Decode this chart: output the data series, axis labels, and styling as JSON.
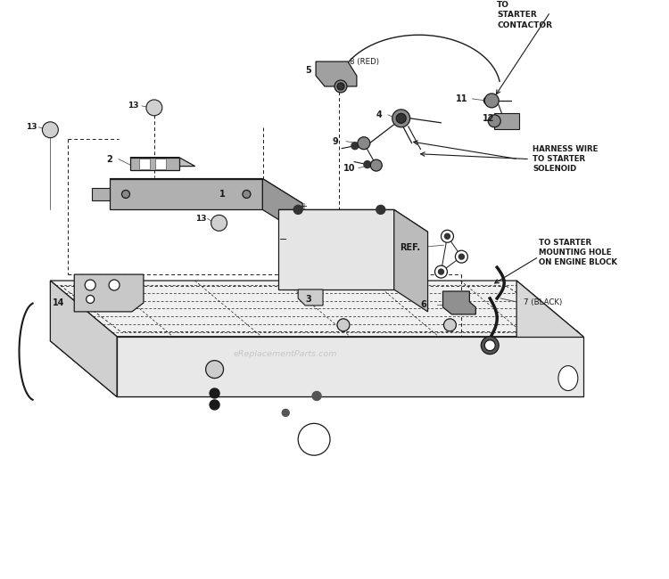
{
  "bg_color": "#ffffff",
  "line_color": "#1a1a1a",
  "fig_width": 7.5,
  "fig_height": 6.5,
  "dpi": 100,
  "xlim": [
    0,
    7.5
  ],
  "ylim": [
    0,
    6.5
  ],
  "watermark": "eReplacementParts.com"
}
